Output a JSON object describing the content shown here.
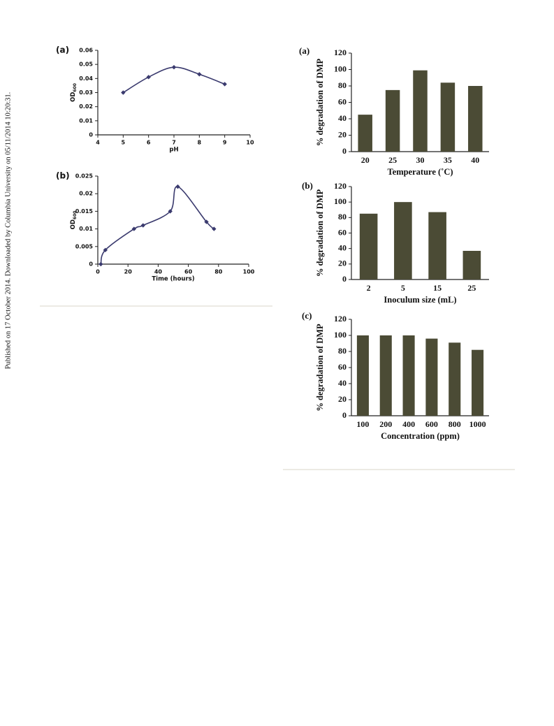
{
  "side_note": "Published on 17 October 2014. Downloaded by Columbia University on 05/11/2014 10:20:31.",
  "chart_data": [
    {
      "type": "line",
      "panel": "(a)",
      "xlabel": "pH",
      "ylabel": "OD",
      "ylabel_subscript": "600",
      "x": [
        5,
        6,
        7,
        8,
        9
      ],
      "series": [
        {
          "color": "#3a3a6e",
          "values": [
            0.03,
            0.041,
            0.048,
            0.043,
            0.036
          ]
        }
      ],
      "xlim": [
        4,
        10
      ],
      "xticks": [
        4,
        5,
        6,
        7,
        8,
        9,
        10
      ],
      "ylim": [
        0,
        0.06
      ],
      "yticks": [
        0,
        0.01,
        0.02,
        0.03,
        0.04,
        0.05,
        0.06
      ]
    },
    {
      "type": "line",
      "panel": "(b)",
      "xlabel": "Time (hours)",
      "ylabel": "OD",
      "ylabel_subscript": "600",
      "x": [
        2,
        5,
        24,
        30,
        48,
        53,
        72,
        77
      ],
      "series": [
        {
          "color": "#3a3a6e",
          "values": [
            0,
            0.004,
            0.01,
            0.011,
            0.015,
            0.022,
            0.012,
            0.01
          ]
        }
      ],
      "xlim": [
        0,
        100
      ],
      "xticks": [
        0,
        20,
        40,
        60,
        80,
        100
      ],
      "ylim": [
        0,
        0.025
      ],
      "yticks": [
        0,
        0.005,
        0.01,
        0.015,
        0.02,
        0.025
      ]
    },
    {
      "type": "bar",
      "panel": "(a)",
      "xlabel": "Temperature (˚C)",
      "ylabel": "% degradation of DMP",
      "categories": [
        "20",
        "25",
        "30",
        "35",
        "40"
      ],
      "values": [
        45,
        75,
        99,
        84,
        80
      ],
      "color": "#4b4b35",
      "ylim": [
        0,
        120
      ],
      "yticks": [
        0,
        20,
        40,
        60,
        80,
        100,
        120
      ]
    },
    {
      "type": "bar",
      "panel": "(b)",
      "xlabel": "Inoculum size (mL)",
      "ylabel": "% degradation of DMP",
      "categories": [
        "2",
        "5",
        "15",
        "25"
      ],
      "values": [
        85,
        100,
        87,
        37
      ],
      "color": "#4b4b35",
      "ylim": [
        0,
        120
      ],
      "yticks": [
        0,
        20,
        40,
        60,
        80,
        100,
        120
      ]
    },
    {
      "type": "bar",
      "panel": "(c)",
      "xlabel": "Concentration (ppm)",
      "ylabel": "% degradation of DMP",
      "categories": [
        "100",
        "200",
        "400",
        "600",
        "800",
        "1000"
      ],
      "values": [
        100,
        100,
        100,
        96,
        91,
        82
      ],
      "color": "#4b4b35",
      "ylim": [
        0,
        120
      ],
      "yticks": [
        0,
        20,
        40,
        60,
        80,
        100,
        120
      ]
    }
  ]
}
